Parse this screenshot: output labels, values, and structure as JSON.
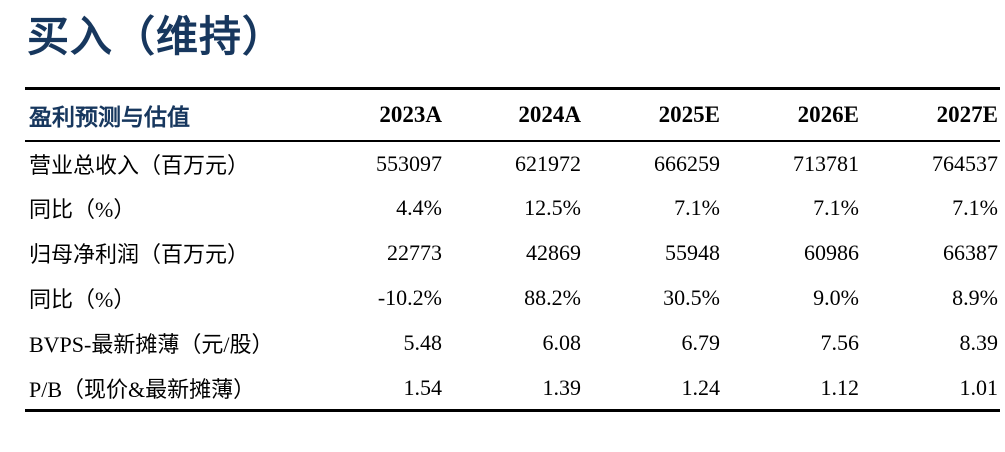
{
  "page": {
    "title": "买入（维持）"
  },
  "colors": {
    "accent_navy": "#17375E",
    "text_black": "#000000",
    "border_black": "#000000",
    "background": "#FFFFFF"
  },
  "table": {
    "header": {
      "label": "盈利预测与估值",
      "columns": [
        "2023A",
        "2024A",
        "2025E",
        "2026E",
        "2027E"
      ]
    },
    "rows": [
      {
        "label": "营业总收入（百万元）",
        "values": [
          "553097",
          "621972",
          "666259",
          "713781",
          "764537"
        ]
      },
      {
        "label": "同比（%）",
        "values": [
          "4.4%",
          "12.5%",
          "7.1%",
          "7.1%",
          "7.1%"
        ]
      },
      {
        "label": "归母净利润（百万元）",
        "values": [
          "22773",
          "42869",
          "55948",
          "60986",
          "66387"
        ]
      },
      {
        "label": "同比（%）",
        "values": [
          "-10.2%",
          "88.2%",
          "30.5%",
          "9.0%",
          "8.9%"
        ]
      },
      {
        "label": "BVPS-最新摊薄（元/股）",
        "values": [
          "5.48",
          "6.08",
          "6.79",
          "7.56",
          "8.39"
        ]
      },
      {
        "label": "P/B（现价&最新摊薄）",
        "values": [
          "1.54",
          "1.39",
          "1.24",
          "1.12",
          "1.01"
        ]
      }
    ]
  }
}
